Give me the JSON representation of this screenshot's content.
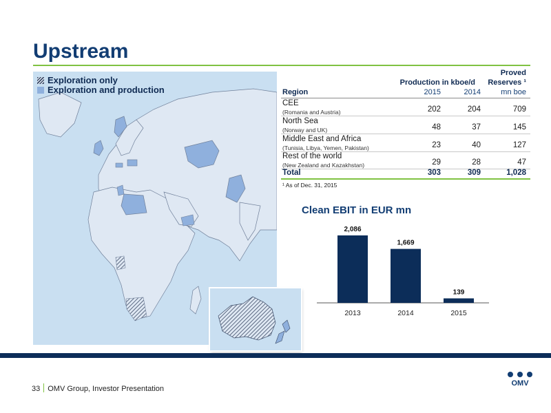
{
  "slide": {
    "title": "Upstream"
  },
  "legend": {
    "items": [
      {
        "label": "Exploration only",
        "style": "hatched"
      },
      {
        "label": "Exploration and production",
        "style": "solid"
      }
    ]
  },
  "table": {
    "header": {
      "production_label": "Production in kboe/d",
      "reserves_label_1": "Proved",
      "reserves_label_2": "Reserves ¹",
      "region_label": "Region",
      "year_1": "2015",
      "year_2": "2014",
      "reserves_unit": "mn boe"
    },
    "rows": [
      {
        "region": "CEE",
        "detail": "(Romania and Austria)",
        "prod_2015": "202",
        "prod_2014": "204",
        "reserves": "709"
      },
      {
        "region": "North Sea",
        "detail": "(Norway and UK)",
        "prod_2015": "48",
        "prod_2014": "37",
        "reserves": "145"
      },
      {
        "region": "Middle East and Africa",
        "detail": "(Tunisia, Libya, Yemen, Pakistan)",
        "prod_2015": "23",
        "prod_2014": "40",
        "reserves": "127"
      },
      {
        "region": "Rest of the world",
        "detail": "(New Zealand and Kazakhstan)",
        "prod_2015": "29",
        "prod_2014": "28",
        "reserves": "47"
      }
    ],
    "total": {
      "label": "Total",
      "prod_2015": "303",
      "prod_2014": "309",
      "reserves": "1,028"
    },
    "footnote": "¹ As of Dec. 31, 2015"
  },
  "chart_data": {
    "type": "bar",
    "title": "Clean EBIT in EUR mn",
    "categories": [
      "2013",
      "2014",
      "2015"
    ],
    "values": [
      2086,
      1669,
      139
    ],
    "value_labels": [
      "2,086",
      "1,669",
      "139"
    ],
    "xlabel": "",
    "ylabel": "",
    "ylim": [
      0,
      2086
    ],
    "grid": false,
    "bar_color": "#0c2d59"
  },
  "footer": {
    "page_number": "33",
    "text": "OMV Group, Investor Presentation"
  },
  "logo": {
    "text": "OMV"
  },
  "colors": {
    "primary": "#123d73",
    "accent_green": "#7fc241",
    "map_sea": "#c9dff1",
    "map_land": "#dfe8f3",
    "map_highlight": "#8fb0dd"
  }
}
